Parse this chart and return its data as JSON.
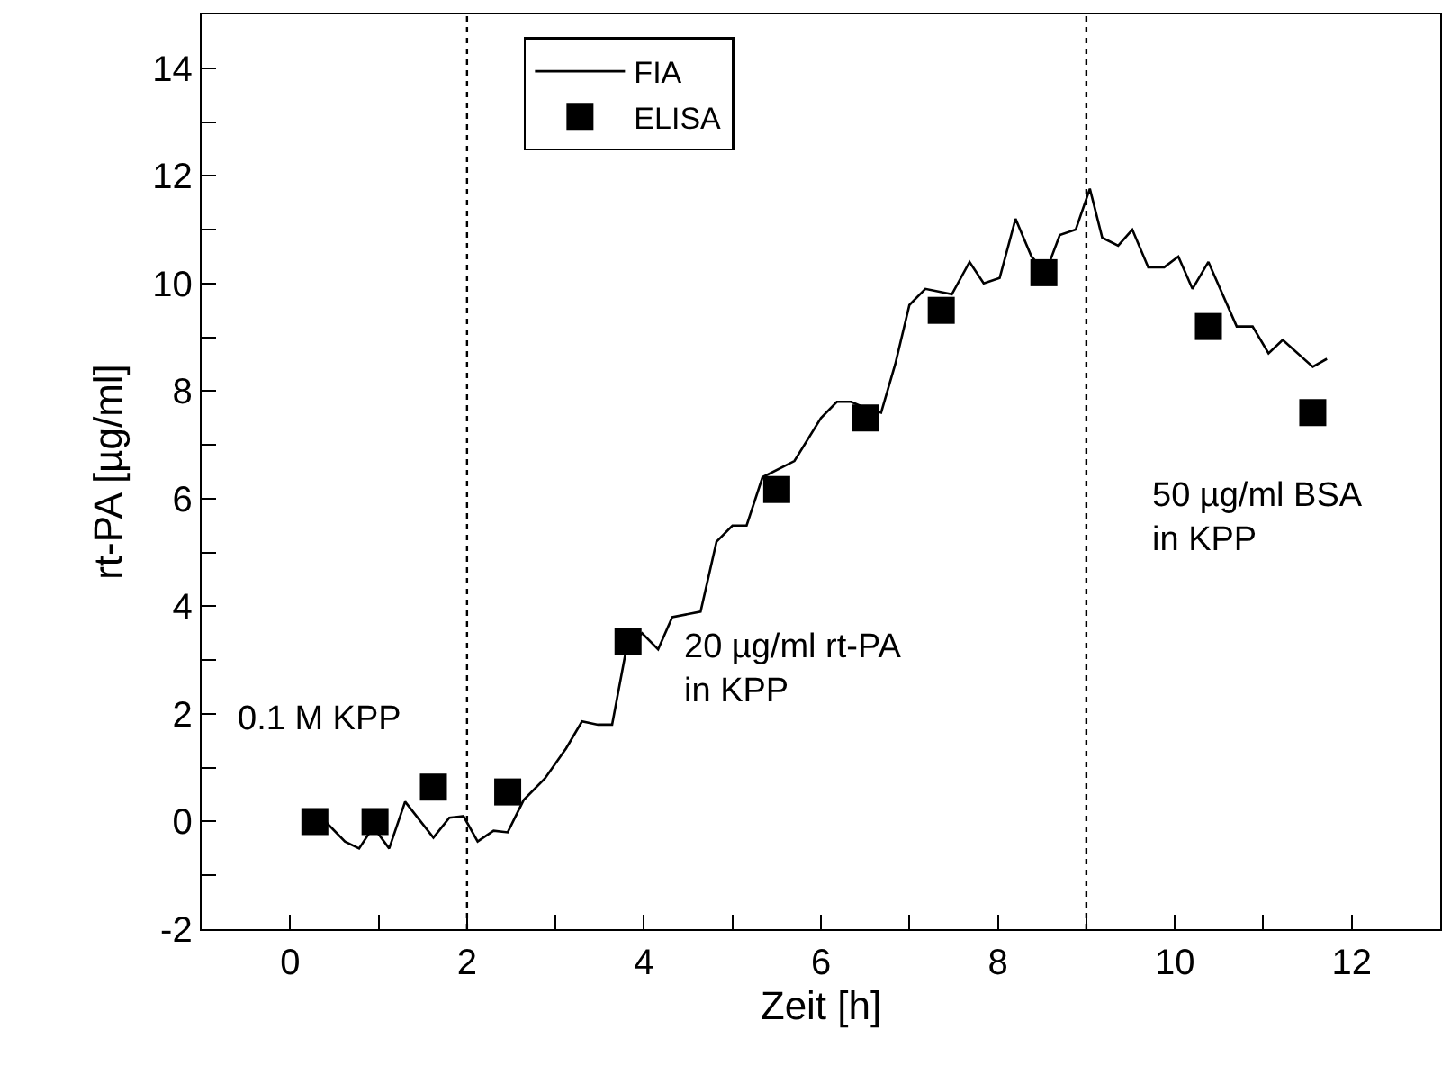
{
  "chart_data": {
    "type": "line",
    "xlabel": "Zeit [h]",
    "ylabel": "rt-PA [µg/ml]",
    "xlim": [
      -1,
      13
    ],
    "ylim": [
      -2,
      15
    ],
    "xticks": [
      0,
      {
        "value": 1,
        "label": null
      },
      2,
      {
        "value": 3,
        "label": null
      },
      4,
      {
        "value": 5,
        "label": null
      },
      6,
      {
        "value": 7,
        "label": null
      },
      8,
      {
        "value": 9,
        "label": null
      },
      10,
      {
        "value": 11,
        "label": null
      },
      12
    ],
    "yticks": [
      -2,
      {
        "value": -1,
        "label": null
      },
      0,
      {
        "value": 1,
        "label": null
      },
      2,
      {
        "value": 3,
        "label": null
      },
      4,
      {
        "value": 5,
        "label": null
      },
      6,
      {
        "value": 7,
        "label": null
      },
      8,
      {
        "value": 9,
        "label": null
      },
      10,
      {
        "value": 11,
        "label": null
      },
      12,
      {
        "value": 13,
        "label": null
      },
      14
    ],
    "series": [
      {
        "name": "FIA",
        "color": "#000000",
        "line_style": "solid",
        "x": [
          0.4,
          0.62,
          0.78,
          0.94,
          1.12,
          1.3,
          1.62,
          1.8,
          1.96,
          2.12,
          2.3,
          2.46,
          2.64,
          2.88,
          3.12,
          3.3,
          3.48,
          3.64,
          3.8,
          3.98,
          4.16,
          4.32,
          4.64,
          4.82,
          5.0,
          5.16,
          5.34,
          5.7,
          6.0,
          6.18,
          6.34,
          6.48,
          6.68,
          6.84,
          7.0,
          7.18,
          7.48,
          7.68,
          7.84,
          8.02,
          8.2,
          8.38,
          8.54,
          8.7,
          8.88,
          9.04,
          9.18,
          9.36,
          9.52,
          9.7,
          9.88,
          10.04,
          10.2,
          10.38,
          10.7,
          10.88,
          11.06,
          11.22,
          11.56,
          11.72
        ],
        "values": [
          0.0,
          -0.37,
          -0.5,
          -0.1,
          -0.5,
          0.37,
          -0.3,
          0.07,
          0.1,
          -0.37,
          -0.17,
          -0.2,
          0.4,
          0.8,
          1.36,
          1.86,
          1.8,
          1.8,
          3.2,
          3.5,
          3.2,
          3.8,
          3.9,
          5.2,
          5.5,
          5.5,
          6.4,
          6.7,
          7.5,
          7.8,
          7.8,
          7.7,
          7.6,
          8.5,
          9.6,
          9.9,
          9.8,
          10.4,
          10.0,
          10.1,
          11.2,
          10.5,
          10.2,
          10.9,
          11.0,
          11.76,
          10.85,
          10.7,
          11.0,
          10.3,
          10.3,
          10.5,
          9.9,
          10.4,
          9.2,
          9.2,
          8.7,
          8.95,
          8.45,
          8.6
        ]
      },
      {
        "name": "ELISA",
        "type": "scatter",
        "marker": "square",
        "color": "#000000",
        "x": [
          0.28,
          0.96,
          1.62,
          2.46,
          3.82,
          5.5,
          6.5,
          7.36,
          8.52,
          10.38,
          11.56
        ],
        "values": [
          0.0,
          0.0,
          0.64,
          0.55,
          3.35,
          6.17,
          7.5,
          9.5,
          10.2,
          9.2,
          7.6
        ]
      }
    ],
    "ref_lines": [
      {
        "axis": "x",
        "value": 2,
        "line_style": "dotted",
        "color": "#000000"
      },
      {
        "axis": "x",
        "value": 9,
        "line_style": "dotted",
        "color": "#000000"
      }
    ],
    "annotations": [
      "0.1 M KPP",
      "20 µg/ml rt-PA\nin KPP",
      "50 µg/ml BSA\nin KPP"
    ],
    "grid": false,
    "legend": "top left"
  }
}
